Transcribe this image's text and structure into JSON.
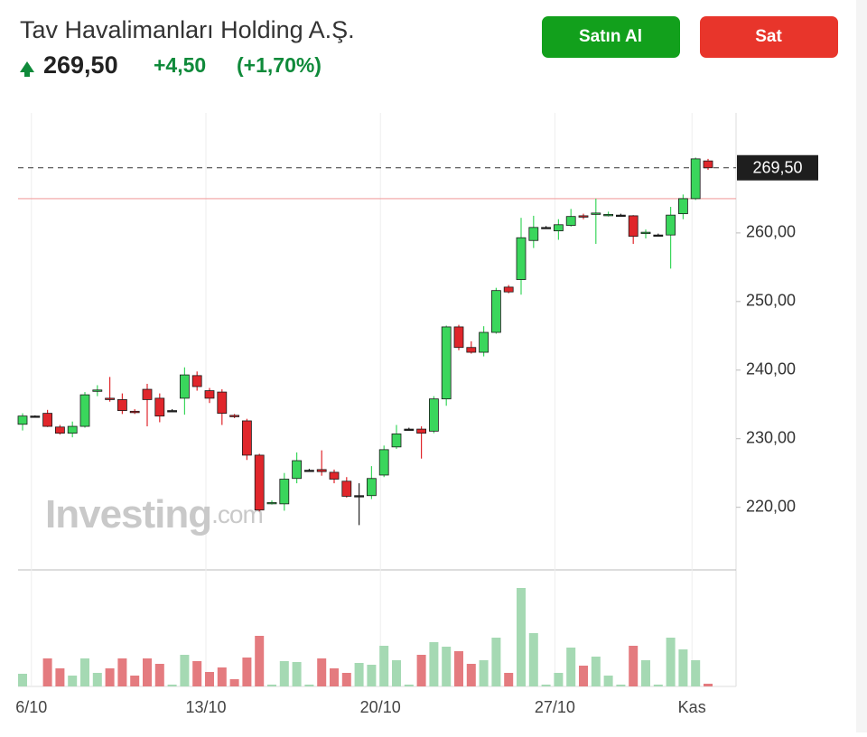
{
  "header": {
    "title": "Tav Havalimanları Holding A.Ş.",
    "change": "+4,50",
    "change_percent": "(+1,70%)"
  },
  "buttons": {
    "buy": "Satın Al",
    "sell": "Sat"
  },
  "chart_data": {
    "type": "candlestick",
    "categories": [
      null,
      "6/10",
      null,
      null,
      null,
      null,
      null,
      null,
      null,
      null,
      null,
      null,
      null,
      null,
      null,
      "13/10",
      null,
      null,
      null,
      null,
      null,
      null,
      null,
      null,
      null,
      null,
      null,
      null,
      null,
      "20/10",
      null,
      null,
      null,
      null,
      null,
      null,
      null,
      null,
      null,
      null,
      null,
      null,
      null,
      "27/10",
      null,
      null,
      null,
      null,
      null,
      null,
      null,
      null,
      null,
      null,
      "Kas",
      null
    ],
    "open": [
      232.1,
      233.3,
      233.7,
      231.7,
      230.8,
      231.8,
      237.0,
      235.9,
      235.7,
      234.0,
      237.2,
      235.9,
      234.1,
      235.9,
      239.2,
      237.0,
      236.8,
      233.4,
      232.6,
      227.6,
      220.6,
      220.5,
      224.2,
      225.4,
      225.5,
      225.1,
      223.8,
      221.7,
      221.7,
      224.7,
      228.8,
      231.4,
      231.4,
      231.1,
      235.8,
      246.3,
      243.3,
      242.6,
      245.5,
      252.1,
      253.2,
      258.9,
      260.8,
      260.3,
      261.1,
      262.5,
      262.8,
      262.6,
      262.6,
      262.5,
      260.0,
      259.7,
      259.7,
      262.8,
      265.0,
      270.5
    ],
    "high": [
      233.7,
      233.4,
      234.2,
      232.0,
      232.5,
      236.8,
      237.8,
      239.0,
      236.6,
      234.3,
      238.0,
      236.6,
      234.3,
      240.4,
      239.8,
      237.4,
      237.2,
      233.6,
      232.9,
      227.8,
      221.0,
      225.0,
      228.0,
      225.6,
      228.3,
      225.5,
      224.4,
      223.5,
      226.0,
      229.0,
      232.0,
      231.6,
      231.8,
      236.2,
      246.5,
      246.6,
      244.2,
      246.4,
      252.0,
      252.4,
      262.2,
      262.5,
      261.0,
      262.0,
      263.5,
      262.8,
      265.0,
      263.1,
      262.8,
      262.6,
      260.5,
      259.9,
      263.8,
      265.6,
      271.0,
      270.8
    ],
    "low": [
      231.2,
      233.2,
      231.7,
      230.6,
      230.2,
      231.6,
      236.2,
      235.4,
      233.6,
      233.6,
      231.8,
      232.4,
      233.9,
      233.5,
      237.0,
      235.2,
      232.0,
      233.0,
      226.9,
      219.4,
      220.4,
      219.5,
      223.5,
      225.2,
      224.6,
      223.5,
      221.4,
      217.4,
      221.2,
      224.4,
      228.5,
      231.2,
      227.1,
      230.8,
      234.8,
      242.9,
      242.4,
      242.0,
      245.3,
      251.2,
      251.0,
      257.8,
      260.6,
      259.0,
      260.9,
      262.0,
      258.4,
      262.4,
      262.4,
      258.4,
      259.2,
      259.5,
      254.8,
      262.0,
      264.8,
      269.2
    ],
    "close": [
      233.3,
      233.3,
      231.8,
      230.8,
      231.8,
      236.4,
      237.1,
      235.8,
      234.1,
      233.8,
      235.7,
      233.3,
      234.1,
      239.3,
      237.6,
      235.9,
      233.7,
      233.2,
      227.6,
      219.6,
      220.7,
      224.1,
      226.8,
      225.4,
      225.2,
      224.1,
      221.6,
      221.7,
      224.2,
      228.4,
      230.7,
      231.4,
      230.8,
      235.8,
      246.3,
      243.3,
      242.6,
      245.5,
      251.6,
      251.4,
      259.3,
      260.8,
      260.8,
      261.2,
      262.4,
      262.3,
      262.9,
      262.7,
      262.6,
      259.5,
      260.1,
      259.7,
      262.6,
      265.0,
      270.8,
      269.5
    ],
    "volume": [
      14,
      0,
      31,
      20,
      12,
      31,
      15,
      20,
      31,
      12,
      31,
      25,
      2,
      35,
      28,
      16,
      21,
      8,
      32,
      56,
      2,
      28,
      27,
      2,
      31,
      20,
      15,
      26,
      24,
      45,
      29,
      2,
      35,
      49,
      44,
      39,
      25,
      29,
      54,
      15,
      109,
      59,
      2,
      15,
      43,
      23,
      33,
      12,
      2,
      45,
      29,
      2,
      54,
      41,
      29,
      3
    ],
    "ylim": [
      211,
      277.5
    ],
    "yticks": [
      {
        "value": 220,
        "label": "220,00"
      },
      {
        "value": 230,
        "label": "230,00"
      },
      {
        "value": 240,
        "label": "240,00"
      },
      {
        "value": 250,
        "label": "250,00"
      },
      {
        "value": 260,
        "label": "260,00"
      }
    ],
    "last_price": {
      "value": 269.5,
      "label": "269,50"
    },
    "reference_line": 265,
    "up_color": "#3ad65c",
    "down_color": "#e0262b",
    "volume_up_color": "#a5d9b3",
    "volume_down_color": "#e47b7f",
    "watermark": "Investing",
    "watermark_suffix": ".com"
  }
}
